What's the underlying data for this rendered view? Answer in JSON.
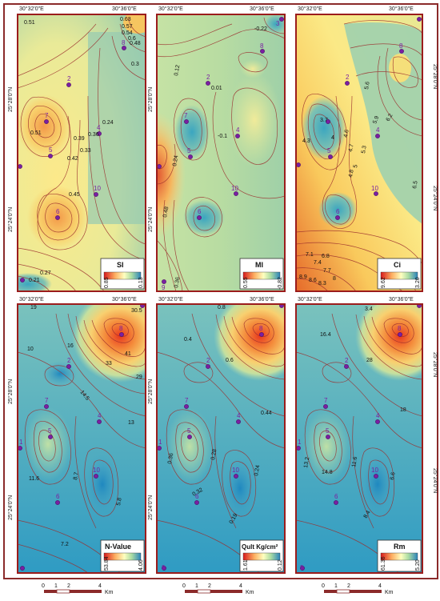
{
  "coords": {
    "lon_left": "30°32'0\"E",
    "lon_right": "30°36'0\"E",
    "lat_top": "25°28'0\"N",
    "lat_bottom": "25°24'0\"N"
  },
  "colors": {
    "frame": "#9b1c1c",
    "contour": "#9b2d2d",
    "well": "#7a1fa2",
    "ramp": [
      "#d7191c",
      "#fdae61",
      "#ffffbf",
      "#abdda4",
      "#2b83ba"
    ]
  },
  "well_ids": [
    "1",
    "2",
    "3",
    "4",
    "5",
    "6",
    "7",
    "8",
    "9",
    "10"
  ],
  "panels": [
    {
      "id": "si",
      "title": "SI",
      "legend_max": "0.85",
      "legend_min": "0.13",
      "contour_labels": [
        "0.51",
        "0.63",
        "0.57",
        "0.54",
        "0.6",
        "0.48",
        "0.3",
        "0.24",
        "0.39",
        "0.42",
        "0.33",
        "0.36",
        "0.51",
        "0.45",
        "0.27",
        "0.21"
      ]
    },
    {
      "id": "mi",
      "title": "MI",
      "legend_max": "0.55",
      "legend_min": "-0.82",
      "contour_labels": [
        "-0.22",
        "0.12",
        "0.01",
        "-0.1",
        "0.24",
        "0.48",
        "0.36"
      ]
    },
    {
      "id": "ci",
      "title": "Ci",
      "legend_max": "9.62",
      "legend_min": "3.20",
      "contour_labels": [
        "5.6",
        "5.9",
        "6.2",
        "4.3",
        "3.7",
        "4",
        "4.6",
        "4.7",
        "5",
        "5.3",
        "4.8",
        "6.5",
        "6.8",
        "7.1",
        "7.4",
        "7.7",
        "8",
        "8.9",
        "8.6",
        "8.3"
      ]
    },
    {
      "id": "nvalue",
      "title": "N-Value",
      "legend_max": "53.84",
      "legend_min": "4.06",
      "contour_labels": [
        "19",
        "30.5",
        "10",
        "16",
        "41",
        "33",
        "29",
        "14.5",
        "13",
        "11.6",
        "8.7",
        "5.8",
        "7.2"
      ]
    },
    {
      "id": "qult",
      "title": "Qult Kg/cm²",
      "legend_max": "1.61",
      "legend_min": "0.12",
      "contour_labels": [
        "0.8",
        "0.4",
        "0.6",
        "0.44",
        "0.36",
        "0.32",
        "0.28",
        "0.24",
        "0.19"
      ]
    },
    {
      "id": "rm",
      "title": "Rm",
      "legend_max": "61.36",
      "legend_min": "5.20",
      "contour_labels": [
        "3.4",
        "16.4",
        "28",
        "18",
        "13.2",
        "14.8",
        "11.6",
        "6.6",
        "8.4"
      ]
    }
  ],
  "scalebar": {
    "ticks": [
      "0",
      "1",
      "2",
      "4"
    ],
    "unit": "Km"
  }
}
